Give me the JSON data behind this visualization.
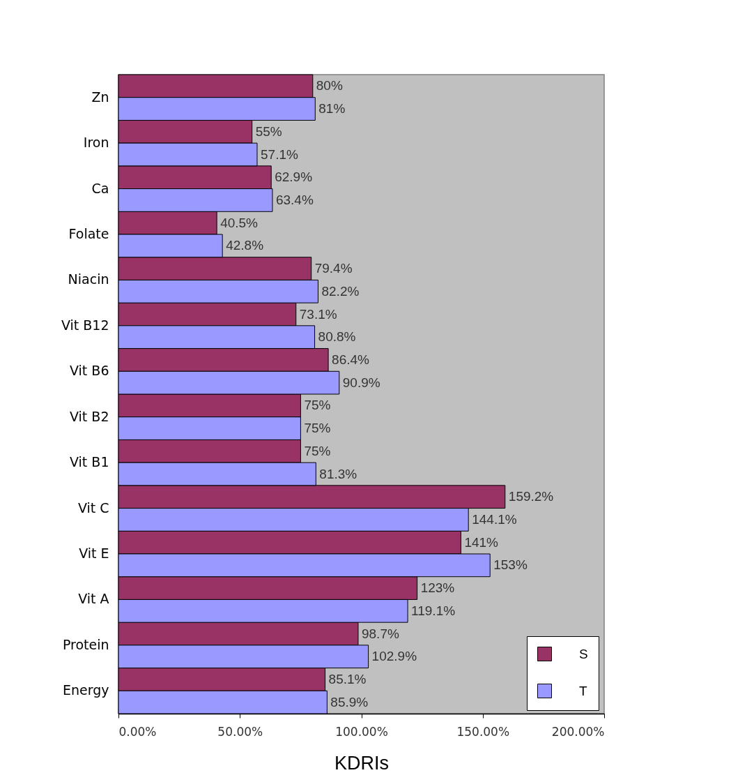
{
  "chart_data": {
    "type": "bar",
    "orientation": "horizontal",
    "xlabel": "KDRIs",
    "categories": [
      "Zn",
      "Iron",
      "Ca",
      "Folate",
      "Niacin",
      "Vit B12",
      "Vit B6",
      "Vit B2",
      "Vit B1",
      "Vit C",
      "Vit E",
      "Vit A",
      "Protein",
      "Energy"
    ],
    "series": [
      {
        "name": "S",
        "color": "#993366",
        "values": [
          80,
          55,
          62.9,
          40.5,
          79.4,
          73.1,
          86.4,
          75,
          75,
          159.2,
          141,
          123,
          98.7,
          85.1
        ],
        "value_labels": [
          "80%",
          "55%",
          "62.9%",
          "40.5%",
          "79.4%",
          "73.1%",
          "86.4%",
          "75%",
          "75%",
          "159.2%",
          "141%",
          "123%",
          "98.7%",
          "85.1%"
        ]
      },
      {
        "name": "T",
        "color": "#9999ff",
        "values": [
          81,
          57.1,
          63.4,
          42.8,
          82.2,
          80.8,
          90.9,
          75,
          81.3,
          144.1,
          153,
          119.1,
          102.9,
          85.9
        ],
        "value_labels": [
          "81%",
          "57.1%",
          "63.4%",
          "42.8%",
          "82.2%",
          "80.8%",
          "90.9%",
          "75%",
          "81.3%",
          "144.1%",
          "153%",
          "119.1%",
          "102.9%",
          "85.9%"
        ]
      }
    ],
    "xlim": [
      0,
      200
    ],
    "xticks": [
      {
        "value": 0,
        "label": "0.00%"
      },
      {
        "value": 50,
        "label": "50.00%"
      },
      {
        "value": 100,
        "label": "100.00%"
      },
      {
        "value": 150,
        "label": "150.00%"
      },
      {
        "value": 200,
        "label": "200.00%"
      }
    ],
    "legend": "bottom right"
  }
}
